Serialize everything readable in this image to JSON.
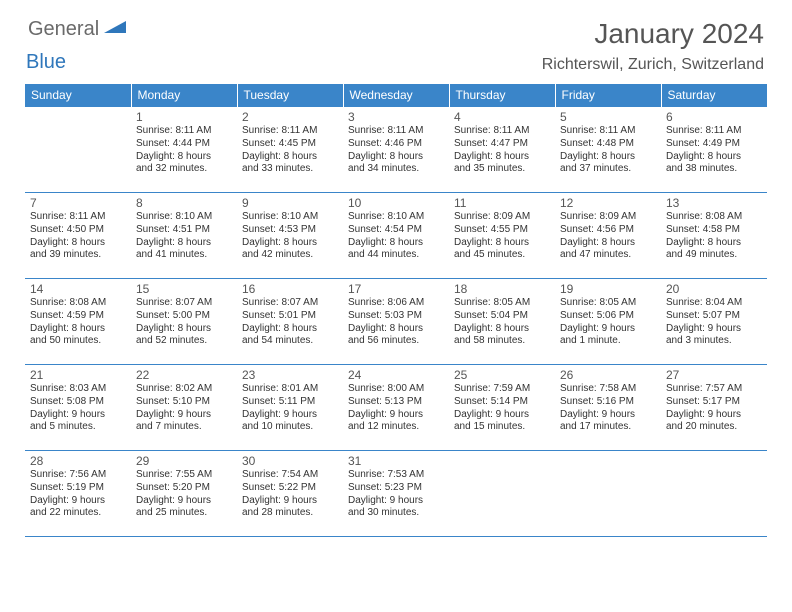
{
  "colors": {
    "header_bg": "#3a85c9",
    "header_text": "#ffffff",
    "border": "#3a85c9",
    "daynum": "#555555",
    "body_text": "#333333",
    "title_text": "#555555",
    "logo_gray": "#6a6a6a",
    "logo_blue": "#2f77bb",
    "background": "#ffffff"
  },
  "typography": {
    "month_title_fontsize": 28,
    "location_fontsize": 16,
    "header_cell_fontsize": 12,
    "daynum_fontsize": 12,
    "body_fontsize": 10
  },
  "logo": {
    "general": "General",
    "blue": "Blue"
  },
  "title": "January 2024",
  "location": "Richterswil, Zurich, Switzerland",
  "weekdays": [
    "Sunday",
    "Monday",
    "Tuesday",
    "Wednesday",
    "Thursday",
    "Friday",
    "Saturday"
  ],
  "weeks": [
    [
      null,
      {
        "n": "1",
        "sr": "Sunrise: 8:11 AM",
        "ss": "Sunset: 4:44 PM",
        "d1": "Daylight: 8 hours",
        "d2": "and 32 minutes."
      },
      {
        "n": "2",
        "sr": "Sunrise: 8:11 AM",
        "ss": "Sunset: 4:45 PM",
        "d1": "Daylight: 8 hours",
        "d2": "and 33 minutes."
      },
      {
        "n": "3",
        "sr": "Sunrise: 8:11 AM",
        "ss": "Sunset: 4:46 PM",
        "d1": "Daylight: 8 hours",
        "d2": "and 34 minutes."
      },
      {
        "n": "4",
        "sr": "Sunrise: 8:11 AM",
        "ss": "Sunset: 4:47 PM",
        "d1": "Daylight: 8 hours",
        "d2": "and 35 minutes."
      },
      {
        "n": "5",
        "sr": "Sunrise: 8:11 AM",
        "ss": "Sunset: 4:48 PM",
        "d1": "Daylight: 8 hours",
        "d2": "and 37 minutes."
      },
      {
        "n": "6",
        "sr": "Sunrise: 8:11 AM",
        "ss": "Sunset: 4:49 PM",
        "d1": "Daylight: 8 hours",
        "d2": "and 38 minutes."
      }
    ],
    [
      {
        "n": "7",
        "sr": "Sunrise: 8:11 AM",
        "ss": "Sunset: 4:50 PM",
        "d1": "Daylight: 8 hours",
        "d2": "and 39 minutes."
      },
      {
        "n": "8",
        "sr": "Sunrise: 8:10 AM",
        "ss": "Sunset: 4:51 PM",
        "d1": "Daylight: 8 hours",
        "d2": "and 41 minutes."
      },
      {
        "n": "9",
        "sr": "Sunrise: 8:10 AM",
        "ss": "Sunset: 4:53 PM",
        "d1": "Daylight: 8 hours",
        "d2": "and 42 minutes."
      },
      {
        "n": "10",
        "sr": "Sunrise: 8:10 AM",
        "ss": "Sunset: 4:54 PM",
        "d1": "Daylight: 8 hours",
        "d2": "and 44 minutes."
      },
      {
        "n": "11",
        "sr": "Sunrise: 8:09 AM",
        "ss": "Sunset: 4:55 PM",
        "d1": "Daylight: 8 hours",
        "d2": "and 45 minutes."
      },
      {
        "n": "12",
        "sr": "Sunrise: 8:09 AM",
        "ss": "Sunset: 4:56 PM",
        "d1": "Daylight: 8 hours",
        "d2": "and 47 minutes."
      },
      {
        "n": "13",
        "sr": "Sunrise: 8:08 AM",
        "ss": "Sunset: 4:58 PM",
        "d1": "Daylight: 8 hours",
        "d2": "and 49 minutes."
      }
    ],
    [
      {
        "n": "14",
        "sr": "Sunrise: 8:08 AM",
        "ss": "Sunset: 4:59 PM",
        "d1": "Daylight: 8 hours",
        "d2": "and 50 minutes."
      },
      {
        "n": "15",
        "sr": "Sunrise: 8:07 AM",
        "ss": "Sunset: 5:00 PM",
        "d1": "Daylight: 8 hours",
        "d2": "and 52 minutes."
      },
      {
        "n": "16",
        "sr": "Sunrise: 8:07 AM",
        "ss": "Sunset: 5:01 PM",
        "d1": "Daylight: 8 hours",
        "d2": "and 54 minutes."
      },
      {
        "n": "17",
        "sr": "Sunrise: 8:06 AM",
        "ss": "Sunset: 5:03 PM",
        "d1": "Daylight: 8 hours",
        "d2": "and 56 minutes."
      },
      {
        "n": "18",
        "sr": "Sunrise: 8:05 AM",
        "ss": "Sunset: 5:04 PM",
        "d1": "Daylight: 8 hours",
        "d2": "and 58 minutes."
      },
      {
        "n": "19",
        "sr": "Sunrise: 8:05 AM",
        "ss": "Sunset: 5:06 PM",
        "d1": "Daylight: 9 hours",
        "d2": "and 1 minute."
      },
      {
        "n": "20",
        "sr": "Sunrise: 8:04 AM",
        "ss": "Sunset: 5:07 PM",
        "d1": "Daylight: 9 hours",
        "d2": "and 3 minutes."
      }
    ],
    [
      {
        "n": "21",
        "sr": "Sunrise: 8:03 AM",
        "ss": "Sunset: 5:08 PM",
        "d1": "Daylight: 9 hours",
        "d2": "and 5 minutes."
      },
      {
        "n": "22",
        "sr": "Sunrise: 8:02 AM",
        "ss": "Sunset: 5:10 PM",
        "d1": "Daylight: 9 hours",
        "d2": "and 7 minutes."
      },
      {
        "n": "23",
        "sr": "Sunrise: 8:01 AM",
        "ss": "Sunset: 5:11 PM",
        "d1": "Daylight: 9 hours",
        "d2": "and 10 minutes."
      },
      {
        "n": "24",
        "sr": "Sunrise: 8:00 AM",
        "ss": "Sunset: 5:13 PM",
        "d1": "Daylight: 9 hours",
        "d2": "and 12 minutes."
      },
      {
        "n": "25",
        "sr": "Sunrise: 7:59 AM",
        "ss": "Sunset: 5:14 PM",
        "d1": "Daylight: 9 hours",
        "d2": "and 15 minutes."
      },
      {
        "n": "26",
        "sr": "Sunrise: 7:58 AM",
        "ss": "Sunset: 5:16 PM",
        "d1": "Daylight: 9 hours",
        "d2": "and 17 minutes."
      },
      {
        "n": "27",
        "sr": "Sunrise: 7:57 AM",
        "ss": "Sunset: 5:17 PM",
        "d1": "Daylight: 9 hours",
        "d2": "and 20 minutes."
      }
    ],
    [
      {
        "n": "28",
        "sr": "Sunrise: 7:56 AM",
        "ss": "Sunset: 5:19 PM",
        "d1": "Daylight: 9 hours",
        "d2": "and 22 minutes."
      },
      {
        "n": "29",
        "sr": "Sunrise: 7:55 AM",
        "ss": "Sunset: 5:20 PM",
        "d1": "Daylight: 9 hours",
        "d2": "and 25 minutes."
      },
      {
        "n": "30",
        "sr": "Sunrise: 7:54 AM",
        "ss": "Sunset: 5:22 PM",
        "d1": "Daylight: 9 hours",
        "d2": "and 28 minutes."
      },
      {
        "n": "31",
        "sr": "Sunrise: 7:53 AM",
        "ss": "Sunset: 5:23 PM",
        "d1": "Daylight: 9 hours",
        "d2": "and 30 minutes."
      },
      null,
      null,
      null
    ]
  ]
}
